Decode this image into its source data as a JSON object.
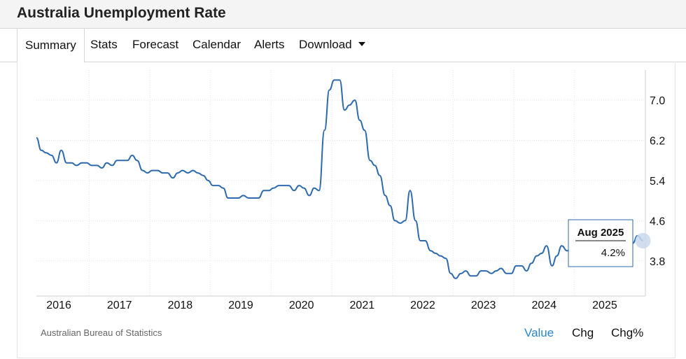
{
  "header": {
    "title": "Australia Unemployment Rate"
  },
  "tabs": [
    {
      "label": "Summary",
      "active": true
    },
    {
      "label": "Stats"
    },
    {
      "label": "Forecast"
    },
    {
      "label": "Calendar"
    },
    {
      "label": "Alerts"
    },
    {
      "label": "Download",
      "dropdown": true
    }
  ],
  "footer": {
    "source": "Australian Bureau of Statistics",
    "modes": [
      "Value",
      "Chg",
      "Chg%"
    ],
    "active_mode": "Value"
  },
  "colors": {
    "line": "#2e6aad",
    "accent": "#2a86c9",
    "grid": "#e8e8e8"
  },
  "chart_data": {
    "type": "line",
    "title": "Australia Unemployment Rate",
    "x_tick_labels": [
      "2016",
      "2017",
      "2018",
      "2019",
      "2020",
      "2021",
      "2022",
      "2023",
      "2024",
      "2025"
    ],
    "y_tick_labels": [
      "7.0",
      "6.2",
      "5.4",
      "4.6",
      "3.8"
    ],
    "y_ticks": [
      7.0,
      6.2,
      5.4,
      4.6,
      3.8
    ],
    "ylim": [
      3.1,
      7.6
    ],
    "xlim": [
      2015.63,
      2025.67
    ],
    "y_axis_side": "right",
    "grid": true,
    "tooltip": {
      "date": "Aug 2025",
      "value": "4.2%"
    },
    "series": [
      {
        "values": [
          [
            2015.63,
            6.25
          ],
          [
            2015.71,
            6.0
          ],
          [
            2015.79,
            5.95
          ],
          [
            2015.88,
            5.9
          ],
          [
            2015.96,
            5.75
          ],
          [
            2016.04,
            6.0
          ],
          [
            2016.13,
            5.75
          ],
          [
            2016.21,
            5.75
          ],
          [
            2016.29,
            5.7
          ],
          [
            2016.38,
            5.75
          ],
          [
            2016.46,
            5.75
          ],
          [
            2016.54,
            5.7
          ],
          [
            2016.63,
            5.7
          ],
          [
            2016.71,
            5.65
          ],
          [
            2016.79,
            5.75
          ],
          [
            2016.88,
            5.7
          ],
          [
            2016.96,
            5.8
          ],
          [
            2017.04,
            5.8
          ],
          [
            2017.13,
            5.8
          ],
          [
            2017.21,
            5.9
          ],
          [
            2017.29,
            5.8
          ],
          [
            2017.38,
            5.6
          ],
          [
            2017.46,
            5.55
          ],
          [
            2017.54,
            5.6
          ],
          [
            2017.63,
            5.6
          ],
          [
            2017.71,
            5.55
          ],
          [
            2017.79,
            5.55
          ],
          [
            2017.88,
            5.45
          ],
          [
            2017.96,
            5.55
          ],
          [
            2018.04,
            5.6
          ],
          [
            2018.13,
            5.55
          ],
          [
            2018.21,
            5.6
          ],
          [
            2018.29,
            5.55
          ],
          [
            2018.38,
            5.5
          ],
          [
            2018.46,
            5.4
          ],
          [
            2018.54,
            5.3
          ],
          [
            2018.63,
            5.3
          ],
          [
            2018.71,
            5.25
          ],
          [
            2018.79,
            5.05
          ],
          [
            2018.88,
            5.05
          ],
          [
            2018.96,
            5.05
          ],
          [
            2019.04,
            5.1
          ],
          [
            2019.13,
            5.05
          ],
          [
            2019.21,
            5.05
          ],
          [
            2019.29,
            5.05
          ],
          [
            2019.38,
            5.2
          ],
          [
            2019.46,
            5.2
          ],
          [
            2019.54,
            5.25
          ],
          [
            2019.63,
            5.3
          ],
          [
            2019.71,
            5.3
          ],
          [
            2019.79,
            5.3
          ],
          [
            2019.88,
            5.2
          ],
          [
            2019.96,
            5.3
          ],
          [
            2020.04,
            5.25
          ],
          [
            2020.13,
            5.1
          ],
          [
            2020.21,
            5.25
          ],
          [
            2020.29,
            5.2
          ],
          [
            2020.38,
            6.4
          ],
          [
            2020.46,
            7.2
          ],
          [
            2020.54,
            7.4
          ],
          [
            2020.63,
            7.4
          ],
          [
            2020.71,
            6.8
          ],
          [
            2020.79,
            6.9
          ],
          [
            2020.88,
            7.0
          ],
          [
            2020.96,
            6.6
          ],
          [
            2021.04,
            6.4
          ],
          [
            2021.13,
            5.8
          ],
          [
            2021.21,
            5.7
          ],
          [
            2021.29,
            5.5
          ],
          [
            2021.38,
            5.1
          ],
          [
            2021.46,
            4.9
          ],
          [
            2021.54,
            4.6
          ],
          [
            2021.63,
            4.55
          ],
          [
            2021.71,
            4.6
          ],
          [
            2021.79,
            5.2
          ],
          [
            2021.88,
            4.6
          ],
          [
            2021.96,
            4.2
          ],
          [
            2022.04,
            4.2
          ],
          [
            2022.13,
            4.0
          ],
          [
            2022.21,
            3.95
          ],
          [
            2022.29,
            3.9
          ],
          [
            2022.38,
            3.85
          ],
          [
            2022.46,
            3.55
          ],
          [
            2022.54,
            3.45
          ],
          [
            2022.63,
            3.55
          ],
          [
            2022.71,
            3.6
          ],
          [
            2022.79,
            3.5
          ],
          [
            2022.88,
            3.5
          ],
          [
            2022.96,
            3.6
          ],
          [
            2023.04,
            3.6
          ],
          [
            2023.13,
            3.55
          ],
          [
            2023.21,
            3.6
          ],
          [
            2023.29,
            3.65
          ],
          [
            2023.38,
            3.55
          ],
          [
            2023.46,
            3.55
          ],
          [
            2023.54,
            3.7
          ],
          [
            2023.63,
            3.7
          ],
          [
            2023.71,
            3.6
          ],
          [
            2023.79,
            3.75
          ],
          [
            2023.88,
            3.9
          ],
          [
            2023.96,
            3.95
          ],
          [
            2024.04,
            4.1
          ],
          [
            2024.13,
            3.7
          ],
          [
            2024.21,
            3.9
          ],
          [
            2024.29,
            4.1
          ],
          [
            2024.38,
            4.0
          ],
          [
            2024.46,
            4.05
          ],
          [
            2024.54,
            4.1
          ],
          [
            2024.63,
            4.2
          ],
          [
            2024.71,
            4.15
          ],
          [
            2024.79,
            4.1
          ],
          [
            2024.88,
            4.05
          ],
          [
            2024.96,
            4.0
          ],
          [
            2025.04,
            4.05
          ],
          [
            2025.13,
            4.1
          ],
          [
            2025.21,
            4.05
          ],
          [
            2025.29,
            4.1
          ],
          [
            2025.38,
            4.1
          ],
          [
            2025.46,
            4.15
          ],
          [
            2025.54,
            4.3
          ],
          [
            2025.63,
            4.2
          ]
        ]
      }
    ]
  }
}
